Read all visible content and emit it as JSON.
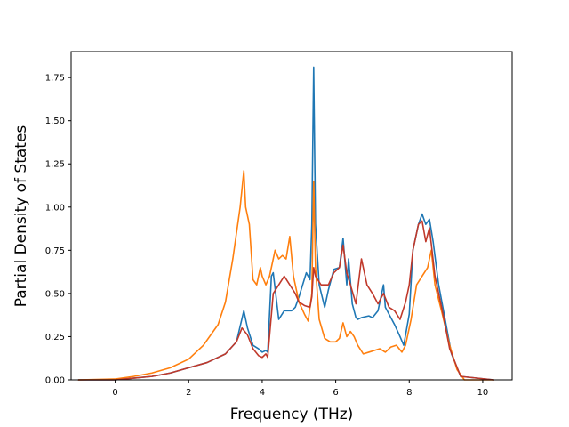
{
  "chart_data": {
    "type": "line",
    "title": "",
    "xlabel": "Frequency (THz)",
    "ylabel": "Partial Density of States",
    "xlim": [
      -1.2,
      10.8
    ],
    "ylim": [
      0,
      1.9
    ],
    "xticks": [
      0,
      2,
      4,
      6,
      8,
      10
    ],
    "xtick_labels": [
      "0",
      "2",
      "4",
      "6",
      "8",
      "10"
    ],
    "yticks": [
      0,
      0.25,
      0.5,
      0.75,
      1.0,
      1.25,
      1.5,
      1.75
    ],
    "ytick_labels": [
      "0.00",
      "0.25",
      "0.50",
      "0.75",
      "1.00",
      "1.25",
      "1.50",
      "1.75"
    ],
    "grid": false,
    "legend": "none",
    "series": [
      {
        "color": "#1f77b4",
        "x": [
          -1.0,
          0.0,
          0.5,
          1.0,
          1.5,
          2.0,
          2.5,
          3.0,
          3.3,
          3.5,
          3.6,
          3.75,
          3.9,
          4.0,
          4.1,
          4.15,
          4.25,
          4.3,
          4.45,
          4.6,
          4.8,
          4.9,
          5.0,
          5.1,
          5.2,
          5.3,
          5.35,
          5.4,
          5.45,
          5.55,
          5.7,
          5.8,
          5.95,
          6.1,
          6.2,
          6.3,
          6.35,
          6.45,
          6.55,
          6.6,
          6.7,
          6.9,
          7.0,
          7.15,
          7.3,
          7.35,
          7.45,
          7.6,
          7.75,
          7.85,
          8.0,
          8.1,
          8.25,
          8.35,
          8.45,
          8.55,
          8.65,
          8.8,
          8.95,
          9.15,
          9.4,
          10.3
        ],
        "y": [
          0.0,
          0.0,
          0.01,
          0.02,
          0.04,
          0.07,
          0.1,
          0.15,
          0.22,
          0.4,
          0.3,
          0.2,
          0.18,
          0.16,
          0.17,
          0.16,
          0.6,
          0.62,
          0.35,
          0.4,
          0.4,
          0.42,
          0.48,
          0.55,
          0.62,
          0.58,
          0.9,
          1.81,
          0.9,
          0.55,
          0.42,
          0.52,
          0.64,
          0.65,
          0.82,
          0.55,
          0.7,
          0.44,
          0.36,
          0.35,
          0.36,
          0.37,
          0.36,
          0.4,
          0.55,
          0.42,
          0.38,
          0.32,
          0.25,
          0.2,
          0.38,
          0.75,
          0.9,
          0.96,
          0.9,
          0.93,
          0.8,
          0.55,
          0.38,
          0.15,
          0.02,
          0.0
        ]
      },
      {
        "color": "#ff7f0e",
        "x": [
          -1.0,
          0.0,
          0.5,
          1.0,
          1.5,
          2.0,
          2.4,
          2.8,
          3.0,
          3.2,
          3.4,
          3.5,
          3.55,
          3.65,
          3.75,
          3.85,
          3.95,
          4.0,
          4.1,
          4.2,
          4.35,
          4.45,
          4.55,
          4.65,
          4.75,
          4.85,
          5.0,
          5.15,
          5.25,
          5.35,
          5.4,
          5.45,
          5.55,
          5.7,
          5.85,
          6.0,
          6.1,
          6.2,
          6.3,
          6.4,
          6.5,
          6.6,
          6.75,
          6.9,
          7.05,
          7.2,
          7.35,
          7.5,
          7.65,
          7.8,
          7.9,
          8.05,
          8.2,
          8.35,
          8.5,
          8.6,
          8.7,
          8.9,
          9.1,
          9.3,
          9.5,
          10.3
        ],
        "y": [
          0.0,
          0.005,
          0.02,
          0.04,
          0.07,
          0.12,
          0.2,
          0.32,
          0.45,
          0.7,
          1.0,
          1.21,
          1.0,
          0.9,
          0.58,
          0.55,
          0.65,
          0.6,
          0.55,
          0.6,
          0.75,
          0.7,
          0.72,
          0.7,
          0.83,
          0.6,
          0.45,
          0.38,
          0.34,
          0.5,
          1.15,
          0.65,
          0.35,
          0.24,
          0.22,
          0.22,
          0.24,
          0.33,
          0.25,
          0.28,
          0.25,
          0.2,
          0.15,
          0.16,
          0.17,
          0.18,
          0.16,
          0.19,
          0.2,
          0.16,
          0.2,
          0.35,
          0.55,
          0.6,
          0.65,
          0.75,
          0.55,
          0.38,
          0.2,
          0.06,
          0.0,
          0.0
        ]
      },
      {
        "color": "#c0392b",
        "x": [
          -1.0,
          0.0,
          0.5,
          1.0,
          1.5,
          2.0,
          2.5,
          3.0,
          3.3,
          3.45,
          3.6,
          3.75,
          3.9,
          4.0,
          4.1,
          4.15,
          4.3,
          4.45,
          4.6,
          4.75,
          4.9,
          5.0,
          5.15,
          5.3,
          5.35,
          5.4,
          5.45,
          5.6,
          5.8,
          5.95,
          6.1,
          6.2,
          6.3,
          6.4,
          6.55,
          6.7,
          6.85,
          7.0,
          7.15,
          7.3,
          7.45,
          7.6,
          7.75,
          7.9,
          8.0,
          8.1,
          8.25,
          8.35,
          8.45,
          8.55,
          8.7,
          8.9,
          9.1,
          9.4,
          10.3
        ],
        "y": [
          0.0,
          0.0,
          0.01,
          0.02,
          0.04,
          0.07,
          0.1,
          0.15,
          0.22,
          0.3,
          0.26,
          0.18,
          0.14,
          0.13,
          0.15,
          0.13,
          0.5,
          0.55,
          0.6,
          0.55,
          0.5,
          0.45,
          0.43,
          0.42,
          0.48,
          0.65,
          0.6,
          0.55,
          0.55,
          0.62,
          0.65,
          0.78,
          0.62,
          0.55,
          0.44,
          0.7,
          0.55,
          0.5,
          0.44,
          0.5,
          0.42,
          0.4,
          0.35,
          0.45,
          0.55,
          0.75,
          0.9,
          0.92,
          0.8,
          0.88,
          0.6,
          0.4,
          0.18,
          0.02,
          0.0
        ]
      }
    ]
  }
}
